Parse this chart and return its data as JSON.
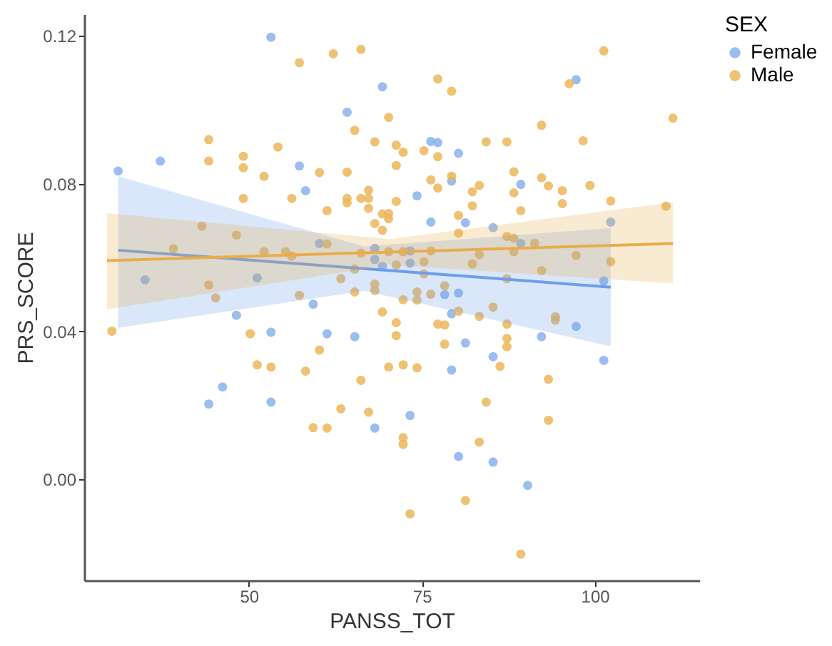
{
  "chart_data": {
    "type": "scatter",
    "xlabel": "PANSS_TOT",
    "ylabel": "PRS_SCORE",
    "legend_title": "SEX",
    "xlim": [
      26.2,
      115.1
    ],
    "xticks": [
      50,
      75,
      100
    ],
    "ylim": [
      -0.0273,
      0.1258
    ],
    "yticks": [
      {
        "value": 0,
        "label": "0.00"
      },
      {
        "value": 0.04,
        "label": "0.04"
      },
      {
        "value": 0.08,
        "label": "0.08"
      },
      {
        "value": 0.12,
        "label": "0.12"
      }
    ],
    "grid": false,
    "legend": "right",
    "marker": "circle",
    "series": [
      {
        "name": "Female",
        "color": "#8ab2ec",
        "x": [
          31.1,
          37.2,
          53.2,
          69.3,
          64.2,
          57.3,
          58.2,
          35.0,
          51.2,
          60.2,
          68.2,
          68.2,
          69.3,
          97.3,
          76.3,
          77.3,
          80.3,
          79.3,
          89.3,
          74.3,
          76.3,
          81.3,
          85.3,
          102.3,
          89.3,
          73.3,
          73.3,
          101.3,
          78.3,
          80.3,
          48.2,
          53.2,
          59.3,
          61.3,
          65.3,
          46.2,
          44.2,
          53.2,
          68.2,
          79.3,
          81.3,
          85.3,
          79.3,
          92.3,
          97.3,
          101.3,
          73.3,
          80.3,
          85.3,
          90.3
        ],
        "values": [
          0.0834,
          0.0861,
          0.1196,
          0.1062,
          0.0993,
          0.0848,
          0.0781,
          0.054,
          0.0545,
          0.0638,
          0.0625,
          0.0595,
          0.0576,
          0.1081,
          0.0914,
          0.0911,
          0.0882,
          0.0807,
          0.0798,
          0.0767,
          0.0696,
          0.0694,
          0.0681,
          0.0696,
          0.0638,
          0.0618,
          0.0585,
          0.0537,
          0.05,
          0.0504,
          0.0444,
          0.0398,
          0.0474,
          0.0394,
          0.0386,
          0.025,
          0.0204,
          0.0209,
          0.0139,
          0.0448,
          0.0369,
          0.0332,
          0.0296,
          0.0386,
          0.0414,
          0.0322,
          0.0173,
          0.0062,
          0.0047,
          -0.0016
        ]
      },
      {
        "name": "Male",
        "color": "#ecb65a",
        "x": [
          57.3,
          62.2,
          66.2,
          70.2,
          65.3,
          68.2,
          71.3,
          44.2,
          44.2,
          49.2,
          49.2,
          54.2,
          52.2,
          60.2,
          64.2,
          71.3,
          49.2,
          56.2,
          61.3,
          64.2,
          64.2,
          66.2,
          67.3,
          67.3,
          67.3,
          71.3,
          69.3,
          70.2,
          70.2,
          68.2,
          69.3,
          43.2,
          48.2,
          39.1,
          52.2,
          55.3,
          56.2,
          61.3,
          66.2,
          70.2,
          65.3,
          63.3,
          68.2,
          68.2,
          65.3,
          44.2,
          45.2,
          57.3,
          101.3,
          77.3,
          79.3,
          96.3,
          92.3,
          111.3,
          72.3,
          75.3,
          77.3,
          84.3,
          87.3,
          98.3,
          79.3,
          76.3,
          77.3,
          83.3,
          82.3,
          88.3,
          88.3,
          92.3,
          93.3,
          95.3,
          99.3,
          95.3,
          102.3,
          82.3,
          89.3,
          80.3,
          80.3,
          87.3,
          88.3,
          91.3,
          110.3,
          76.3,
          72.3,
          83.3,
          82.3,
          88.3,
          97.3,
          102.3,
          71.3,
          75.3,
          75.3,
          92.3,
          87.3,
          78.3,
          74.3,
          76.3,
          72.3,
          74.3,
          30.2,
          50.2,
          51.2,
          53.2,
          58.2,
          60.2,
          66.2,
          63.3,
          67.3,
          59.3,
          61.3,
          69.3,
          71.3,
          71.3,
          70.2,
          77.3,
          78.3,
          80.3,
          83.3,
          85.3,
          87.3,
          78.3,
          87.3,
          87.3,
          94.3,
          94.3,
          72.3,
          74.3,
          86.3,
          93.3,
          84.3,
          93.3,
          72.3,
          72.3,
          83.3,
          81.3,
          73.3,
          89.3
        ],
        "values": [
          0.1127,
          0.1151,
          0.1163,
          0.0979,
          0.0944,
          0.0913,
          0.0904,
          0.0919,
          0.0861,
          0.0874,
          0.0843,
          0.0899,
          0.082,
          0.083,
          0.0831,
          0.0849,
          0.076,
          0.076,
          0.0727,
          0.076,
          0.0748,
          0.076,
          0.0782,
          0.076,
          0.0733,
          0.0752,
          0.0718,
          0.0719,
          0.0705,
          0.0692,
          0.0674,
          0.0685,
          0.0661,
          0.0624,
          0.0616,
          0.0616,
          0.0604,
          0.0637,
          0.0612,
          0.0616,
          0.0569,
          0.0543,
          0.0528,
          0.0511,
          0.0507,
          0.0526,
          0.0491,
          0.0498,
          0.1159,
          0.1083,
          0.105,
          0.107,
          0.0958,
          0.0977,
          0.0885,
          0.0889,
          0.0873,
          0.0913,
          0.0913,
          0.0916,
          0.082,
          0.081,
          0.0788,
          0.0795,
          0.0778,
          0.0832,
          0.0775,
          0.0816,
          0.0794,
          0.0781,
          0.0795,
          0.0746,
          0.0753,
          0.074,
          0.0727,
          0.0714,
          0.0666,
          0.0657,
          0.0652,
          0.0639,
          0.0739,
          0.0618,
          0.0616,
          0.0608,
          0.0583,
          0.0616,
          0.0606,
          0.0589,
          0.058,
          0.0589,
          0.0556,
          0.0565,
          0.0543,
          0.0524,
          0.0507,
          0.0501,
          0.0486,
          0.0485,
          0.0401,
          0.0394,
          0.031,
          0.0304,
          0.0293,
          0.035,
          0.0268,
          0.0191,
          0.0182,
          0.014,
          0.0139,
          0.0453,
          0.0424,
          0.0389,
          0.0304,
          0.042,
          0.0418,
          0.0455,
          0.0441,
          0.0466,
          0.042,
          0.0366,
          0.0381,
          0.0359,
          0.044,
          0.0431,
          0.031,
          0.0302,
          0.0306,
          0.0271,
          0.0209,
          0.016,
          0.0113,
          0.0095,
          0.0101,
          -0.0057,
          -0.0093,
          -0.0202
        ]
      },
      {
        "type": "line",
        "marker": "none",
        "line_style": "solid",
        "color": "#6d9eeb",
        "x": [
          31.1,
          66.7,
          102.3
        ],
        "values": [
          0.062,
          0.057,
          0.052
        ],
        "lower": [
          0.041,
          0.051,
          0.036
        ],
        "upper": [
          0.082,
          0.063,
          0.068
        ]
      },
      {
        "type": "line",
        "marker": "none",
        "line_style": "solid",
        "color": "#e8ad4a",
        "x": [
          29.5,
          70.4,
          111.3
        ],
        "values": [
          0.0592,
          0.0615,
          0.0638
        ],
        "lower": [
          0.046,
          0.058,
          0.053
        ],
        "upper": [
          0.072,
          0.065,
          0.075
        ]
      }
    ]
  }
}
